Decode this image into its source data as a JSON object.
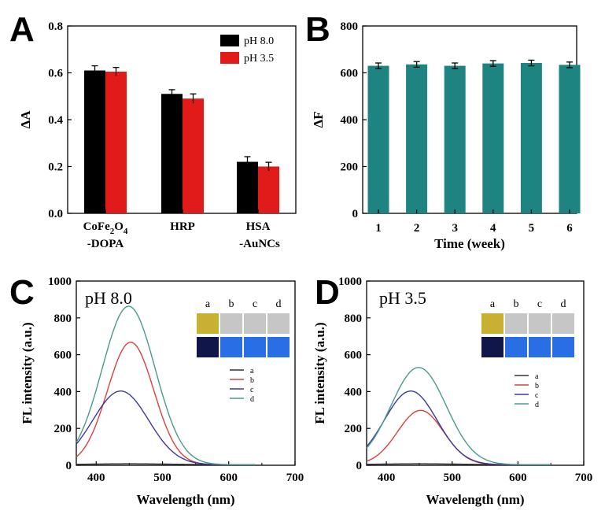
{
  "panels": [
    "A",
    "B",
    "C",
    "D"
  ],
  "colors": {
    "black": "#000000",
    "red": "#e11a1a",
    "teal": "#1e8482",
    "line_a": "#333333",
    "line_b": "#d9403e",
    "line_c": "#3a3a9a",
    "line_d": "#4a9a8e",
    "vial_top_yellow": "#c8b030",
    "vial_top_clear": "#c6c6c6",
    "vial_bottom_dark": "#10154a",
    "vial_bottom_blue": "#2a6ee6"
  },
  "chart_data": [
    {
      "id": "A",
      "type": "bar",
      "ylabel": "ΔA",
      "xlabel": "",
      "ylim": [
        0,
        0.8
      ],
      "yticks": [
        "0.0",
        "0.2",
        "0.4",
        "0.6",
        "0.8"
      ],
      "categories": [
        [
          "CoFe",
          "2",
          "O",
          "4",
          ""
        ],
        [
          "HRP"
        ],
        [
          "HSA",
          "-AuNCs"
        ]
      ],
      "category_line2": [
        "-DOPA",
        "",
        ""
      ],
      "series": [
        {
          "name": "pH 8.0",
          "color": "#000000",
          "values": [
            0.61,
            0.51,
            0.22
          ],
          "errors": [
            0.02,
            0.018,
            0.022
          ]
        },
        {
          "name": "pH 3.5",
          "color": "#e11a1a",
          "values": [
            0.605,
            0.49,
            0.2
          ],
          "errors": [
            0.018,
            0.02,
            0.018
          ]
        }
      ],
      "legend": "top-right"
    },
    {
      "id": "B",
      "type": "bar",
      "ylabel": "ΔF",
      "xlabel": "Time (week)",
      "ylim": [
        0,
        800
      ],
      "yticks": [
        "0",
        "200",
        "400",
        "600",
        "800"
      ],
      "categories": [
        "1",
        "2",
        "3",
        "4",
        "5",
        "6"
      ],
      "series": [
        {
          "name": "",
          "color": "#1e8482",
          "values": [
            630,
            636,
            630,
            640,
            642,
            634
          ],
          "errors": [
            12,
            12,
            12,
            12,
            12,
            12
          ]
        }
      ]
    },
    {
      "id": "C",
      "type": "line",
      "inner_title": "pH 8.0",
      "xlabel": "Wavelength (nm)",
      "ylabel": "FL intensity (a.u.)",
      "xlim": [
        370,
        700
      ],
      "ylim": [
        0,
        1000
      ],
      "xticks": [
        "400",
        "500",
        "600",
        "700"
      ],
      "yticks": [
        "0",
        "200",
        "400",
        "600",
        "800",
        "1000"
      ],
      "series": [
        {
          "name": "a",
          "color": "#333333",
          "peak": 450,
          "height": 5,
          "sigma": 60,
          "end": 640
        },
        {
          "name": "b",
          "color": "#d9403e",
          "peak": 452,
          "height": 665,
          "sigma": 35,
          "end": 640
        },
        {
          "name": "c",
          "color": "#3a3a9a",
          "peak": 437,
          "height": 400,
          "sigma": 42,
          "end": 640
        },
        {
          "name": "d",
          "color": "#4a9a8e",
          "peak": 449,
          "height": 860,
          "sigma": 40,
          "end": 640
        }
      ],
      "vial_labels": [
        "a",
        "b",
        "c",
        "d"
      ]
    },
    {
      "id": "D",
      "type": "line",
      "inner_title": "pH 3.5",
      "xlabel": "Wavelength (nm)",
      "ylabel": "FL intensity (a.u.)",
      "xlim": [
        370,
        700
      ],
      "ylim": [
        0,
        1000
      ],
      "xticks": [
        "400",
        "500",
        "600",
        "700"
      ],
      "yticks": [
        "0",
        "200",
        "400",
        "600",
        "800",
        "1000"
      ],
      "series": [
        {
          "name": "a",
          "color": "#333333",
          "peak": 450,
          "height": 5,
          "sigma": 60,
          "end": 650
        },
        {
          "name": "b",
          "color": "#d9403e",
          "peak": 452,
          "height": 295,
          "sigma": 35,
          "end": 650
        },
        {
          "name": "c",
          "color": "#3a3a9a",
          "peak": 437,
          "height": 400,
          "sigma": 40,
          "end": 650
        },
        {
          "name": "d",
          "color": "#4a9a8e",
          "peak": 449,
          "height": 528,
          "sigma": 42,
          "end": 650
        }
      ],
      "vial_labels": [
        "a",
        "b",
        "c",
        "d"
      ]
    }
  ]
}
